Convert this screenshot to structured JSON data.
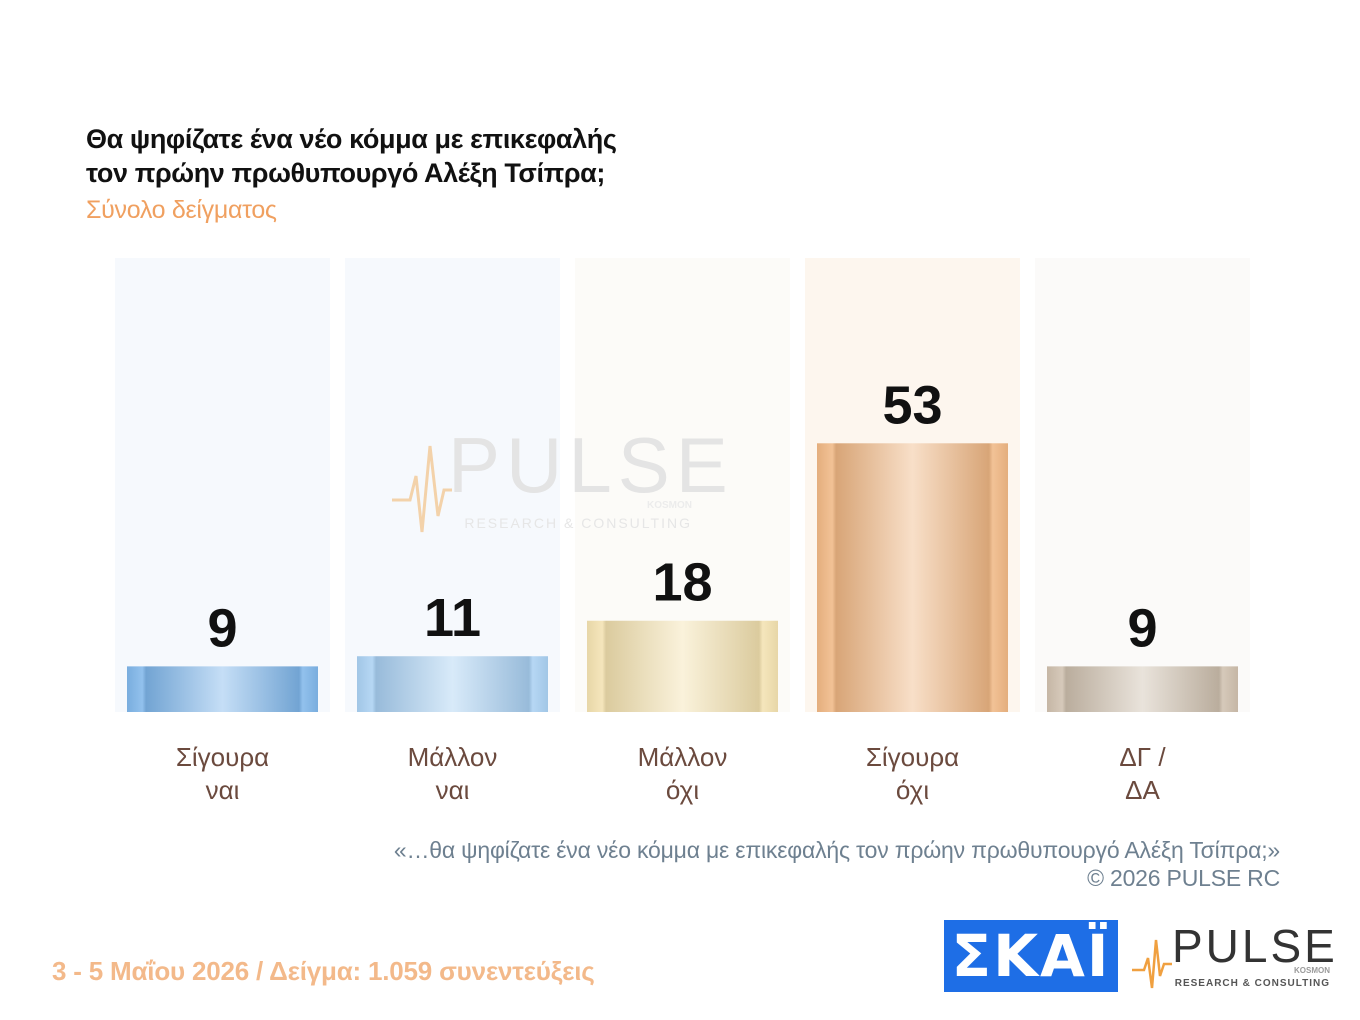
{
  "header": {
    "title_lines": [
      "Θα ψηφίζατε ένα νέο κόμμα με επικεφαλής",
      "τον πρώην πρωθυπουργό Αλέξη Τσίπρα;"
    ],
    "subtitle": "Σύνολο δείγματος"
  },
  "chart_data": {
    "type": "bar",
    "categories": [
      [
        "Σίγουρα",
        "ναι"
      ],
      [
        "Μάλλον",
        "ναι"
      ],
      [
        "Μάλλον",
        "όχι"
      ],
      [
        "Σίγουρα",
        "όχι"
      ],
      [
        "ΔΓ /",
        "ΔΑ"
      ]
    ],
    "values": [
      9,
      11,
      18,
      53,
      9
    ],
    "value_labels": [
      "9",
      "11",
      "18",
      "53",
      "9"
    ],
    "ylim": [
      0,
      100
    ],
    "grid": false,
    "colors": [
      "#7fb6ea",
      "#a9d0f2",
      "#f3e1b0",
      "#f0b784",
      "#cfc0ae"
    ],
    "panel_colors": [
      "#f6f9fd",
      "#f6f9fd",
      "#fcfbf8",
      "#fdf6ee",
      "#fbfaf9"
    ]
  },
  "watermark": {
    "brand": "PULSE",
    "tagline": "RESEARCH & CONSULTING",
    "sub": "KOSMON"
  },
  "footnote": {
    "quote": "«…θα ψηφίζατε ένα νέο κόμμα με επικεφαλής  τον πρώην πρωθυπουργό Αλέξη Τσίπρα;»",
    "copyright": "©  2026  PULSE RC"
  },
  "footer": {
    "dates": "3 - 5  Μαΐου 2026  /  Δείγμα:  1.059 συνεντεύξεις"
  },
  "logos": {
    "skai_text": "ΣΚΑΪ",
    "pulse_text": "PULSE",
    "pulse_sub": "KOSMON",
    "pulse_tagline": "RESEARCH & CONSULTING",
    "skai_color": "#1e6ee6"
  }
}
